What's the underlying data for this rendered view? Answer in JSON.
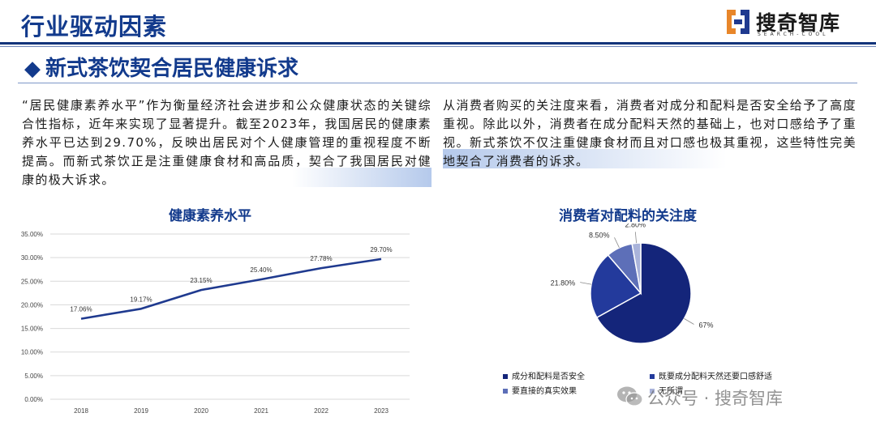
{
  "header": {
    "title": "行业驱动因素"
  },
  "logo": {
    "name": "搜奇智库",
    "sub": "SEARCH-COOL"
  },
  "section": {
    "bullet": "◆",
    "title": "新式茶饮契合居民健康诉求"
  },
  "paragraphs": {
    "left": "“居民健康素养水平”作为衡量经济社会进步和公众健康状态的关键综合性指标，近年来实现了显著提升。截至2023年，我国居民的健康素养水平已达到29.70%，反映出居民对个人健康管理的重视程度不断提高。而新式茶饮正是注重健康食材和高品质，契合了我国居民对健康的极大诉求。",
    "right": "从消费者购买的关注度来看，消费者对成分和配料是否安全给予了高度重视。除此以外，消费者在成分配料天然的基础上，也对口感给予了重视。新式茶饮不仅注重健康食材而且对口感也极其重视，这些特性完美地契合了消费者的诉求。"
  },
  "chart_data": [
    {
      "type": "line",
      "title": "健康素养水平",
      "x": [
        "2018",
        "2019",
        "2020",
        "2021",
        "2022",
        "2023"
      ],
      "series": [
        {
          "values": [
            17.06,
            19.17,
            23.15,
            25.4,
            27.78,
            29.7
          ]
        }
      ],
      "data_labels": [
        "17.06%",
        "19.17%",
        "23.15%",
        "25.40%",
        "27.78%",
        "29.70%"
      ],
      "y_ticks": [
        "0.00%",
        "5.00%",
        "10.00%",
        "15.00%",
        "20.00%",
        "25.00%",
        "30.00%",
        "35.00%"
      ],
      "ylim": [
        0,
        35
      ],
      "grid": true,
      "color": "#1f3a8f"
    },
    {
      "type": "pie",
      "title": "消费者对配料的关注度",
      "slices": [
        {
          "label": "成分和配料是否安全",
          "value": 67,
          "display": "67%",
          "color": "#14257a"
        },
        {
          "label": "既要成分配料天然还要口感舒适",
          "value": 21.8,
          "display": "21.80%",
          "color": "#233a9c"
        },
        {
          "label": "要直接的真实效果",
          "value": 8.5,
          "display": "8.50%",
          "color": "#5d6fb8"
        },
        {
          "label": "无所谓",
          "value": 2.8,
          "display": "2.80%",
          "color": "#a9b3da"
        }
      ],
      "legend_position": "bottom"
    }
  ],
  "watermark": {
    "text": "公众号 · 搜奇智库"
  }
}
